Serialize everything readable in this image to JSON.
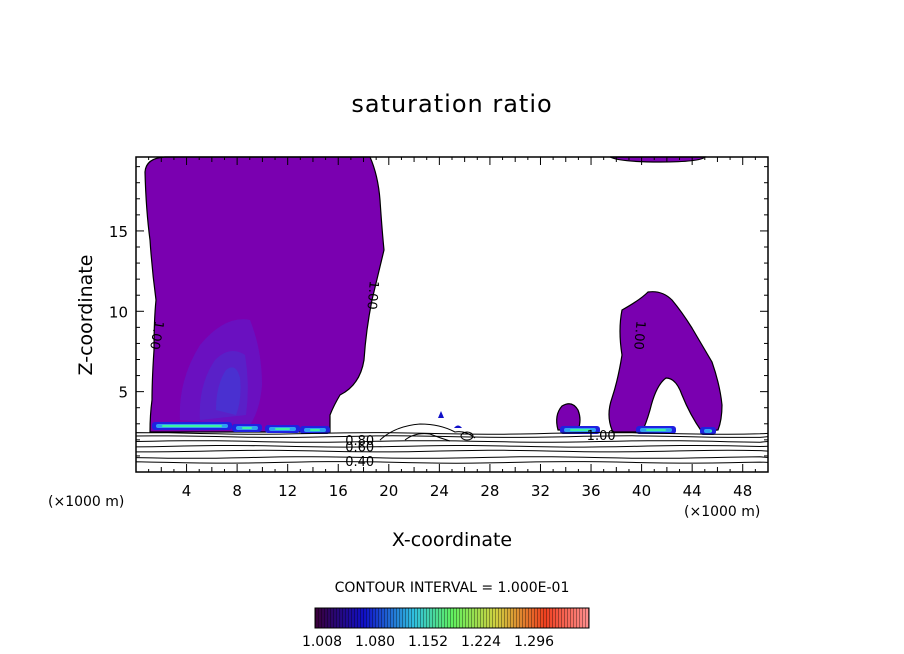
{
  "chart_data": {
    "type": "contour",
    "title": "saturation ratio",
    "xlabel": "X-coordinate",
    "ylabel": "Z-coordinate",
    "x_unit_left": "(×1000 m)",
    "x_unit_right": "(×1000 m)",
    "xlim": [
      0,
      50
    ],
    "ylim": [
      0,
      19.6
    ],
    "x_ticks": [
      4,
      8,
      12,
      16,
      20,
      24,
      28,
      32,
      36,
      40,
      44,
      48
    ],
    "y_ticks": [
      5,
      10,
      15
    ],
    "contour_interval_text": "CONTOUR INTERVAL = 1.000E-01",
    "colorbar": {
      "labels": [
        "1.008",
        "1.080",
        "1.152",
        "1.224",
        "1.296"
      ],
      "colors": [
        "#3a0038",
        "#1010c8",
        "#30c0e0",
        "#60f060",
        "#d0d040",
        "#f04020",
        "#ff9090"
      ]
    },
    "fill_color": "#7a00b0",
    "inner_colors": [
      "#6a10c0",
      "#5a20c8",
      "#4a30d0"
    ],
    "supersat_colors": [
      "#2020e0",
      "#30a0f0",
      "#40f0a0"
    ],
    "contour_labels": [
      {
        "text": "1.00",
        "x": 1.7,
        "y": 8.5
      },
      {
        "text": "1.00",
        "x": 18.8,
        "y": 11.0
      },
      {
        "text": "1.00",
        "x": 39.9,
        "y": 8.5
      },
      {
        "text": "1.00",
        "x": 36.8,
        "y": 2.3
      },
      {
        "text": "0.80",
        "x": 17.7,
        "y": 2.0
      },
      {
        "text": "0.60",
        "x": 17.7,
        "y": 1.6
      },
      {
        "text": "0.40",
        "x": 17.7,
        "y": 0.7
      }
    ],
    "cloud_regions": [
      {
        "name": "left-cloud",
        "x_range": [
          0.8,
          19.0
        ],
        "z_range": [
          2.5,
          19.6
        ]
      },
      {
        "name": "right-top-cloud",
        "x_range": [
          38.0,
          45.0
        ],
        "z_range": [
          19.0,
          19.6
        ]
      },
      {
        "name": "right-cloud",
        "x_range": [
          33.5,
          47.0
        ],
        "z_range": [
          2.5,
          11.5
        ]
      }
    ],
    "surface_isolines_z": [
      2.4,
      2.2,
      1.9,
      1.6,
      1.3,
      0.9,
      0.6
    ]
  }
}
